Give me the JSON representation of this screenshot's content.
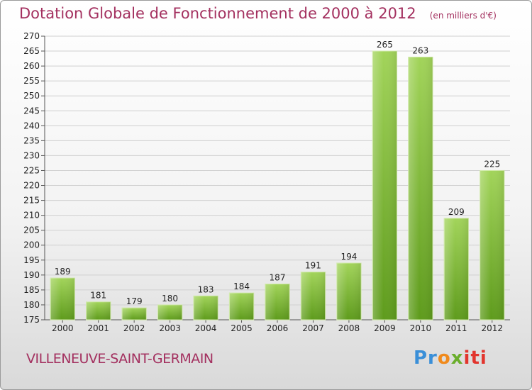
{
  "page": {
    "title": "Dotation Globale de Fonctionnement de 2000 à 2012",
    "unit": "(en milliers d'€)",
    "commune": "VILLENEUVE-SAINT-GERMAIN",
    "logo_text": [
      "Pr",
      "o",
      "x",
      "iti"
    ]
  },
  "colors": {
    "title": "#a3305f",
    "bar_light": "#9fd155",
    "bar_dark": "#5e9b1c",
    "grid": "#d0d0d0"
  },
  "chart_data": {
    "type": "bar",
    "title": "Dotation Globale de Fonctionnement de 2000 à 2012",
    "subtitle": "(en milliers d'€)",
    "xlabel": "",
    "ylabel": "",
    "categories": [
      "2000",
      "2001",
      "2002",
      "2003",
      "2004",
      "2005",
      "2006",
      "2007",
      "2008",
      "2009",
      "2010",
      "2011",
      "2012"
    ],
    "values": [
      189,
      181,
      179,
      180,
      183,
      184,
      187,
      191,
      194,
      265,
      263,
      209,
      225
    ],
    "ylim": [
      175,
      270
    ],
    "yticks": [
      175,
      180,
      185,
      190,
      195,
      200,
      205,
      210,
      215,
      220,
      225,
      230,
      235,
      240,
      245,
      250,
      255,
      260,
      265,
      270
    ],
    "grid": true,
    "legend": "none"
  }
}
